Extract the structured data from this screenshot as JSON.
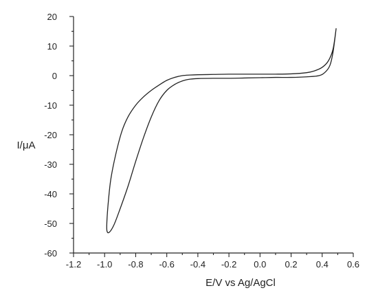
{
  "chart_data": {
    "type": "line",
    "title": "",
    "xlabel": "E/V vs Ag/AgCl",
    "ylabel": "I/μA",
    "xlim": [
      -1.2,
      0.6
    ],
    "ylim": [
      -60,
      20
    ],
    "xticks": [
      -1.2,
      -1.0,
      -0.8,
      -0.6,
      -0.4,
      -0.2,
      0.0,
      0.2,
      0.4,
      0.6
    ],
    "xtick_labels": [
      "-1.2",
      "-1.0",
      "-0.8",
      "-0.6",
      "-0.4",
      "-0.2",
      "0.0",
      "0.2",
      "0.4",
      "0.6"
    ],
    "yticks": [
      20,
      10,
      0,
      -10,
      -20,
      -30,
      -40,
      -50,
      -60
    ],
    "ytick_labels": [
      "20",
      "10",
      "0",
      "-10",
      "-20",
      "-30",
      "-40",
      "-50",
      "-60"
    ],
    "grid": false,
    "color": "#222222",
    "series": [
      {
        "x": [
          0.49,
          0.47,
          0.45,
          0.42,
          0.38,
          0.3,
          0.2,
          0.1,
          0.0,
          -0.1,
          -0.2,
          -0.3,
          -0.4,
          -0.45,
          -0.5,
          -0.55,
          -0.6,
          -0.65,
          -0.7,
          -0.75,
          -0.8,
          -0.85,
          -0.9,
          -0.94,
          -0.97,
          -0.985,
          -0.985,
          -0.975,
          -0.96,
          -0.93,
          -0.89,
          -0.85,
          -0.8,
          -0.75,
          -0.7,
          -0.65,
          -0.6,
          -0.55,
          -0.5,
          -0.45,
          -0.4,
          -0.3,
          -0.2,
          -0.1,
          0.0,
          0.1,
          0.2,
          0.3,
          0.35,
          0.4,
          0.44,
          0.47,
          0.49
        ],
        "y": [
          16,
          8,
          3.5,
          1.2,
          0.0,
          -0.4,
          -0.6,
          -0.6,
          -0.7,
          -0.8,
          -0.9,
          -0.9,
          -1.0,
          -1.2,
          -1.8,
          -3.0,
          -5.0,
          -8.5,
          -14.0,
          -21.0,
          -29.0,
          -37.5,
          -45.0,
          -50.5,
          -53.0,
          -52.5,
          -49.0,
          -42.0,
          -35.0,
          -27.0,
          -19.0,
          -14.0,
          -10.0,
          -7.2,
          -5.0,
          -3.2,
          -1.6,
          -0.6,
          0.0,
          0.2,
          0.3,
          0.4,
          0.5,
          0.5,
          0.5,
          0.5,
          0.6,
          1.0,
          1.6,
          2.8,
          5.0,
          9.0,
          16
        ]
      }
    ]
  }
}
